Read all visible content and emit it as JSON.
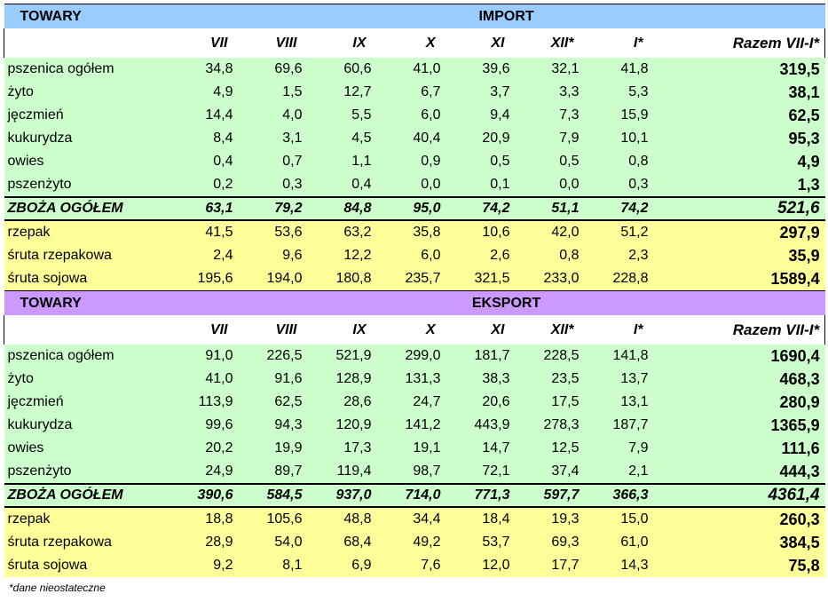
{
  "sections": [
    {
      "key": "import",
      "label": "TOWARY",
      "title": "IMPORT",
      "months": [
        "VII",
        "VIII",
        "IX",
        "X",
        "XI",
        "XII*",
        "I*",
        "Razem VII-I*"
      ],
      "rows": [
        {
          "name": "pszenica ogółem",
          "v": [
            "34,8",
            "69,6",
            "60,6",
            "41,0",
            "39,6",
            "32,1",
            "41,8"
          ],
          "total": "319,5"
        },
        {
          "name": "żyto",
          "v": [
            "4,9",
            "1,5",
            "12,7",
            "6,7",
            "3,7",
            "3,3",
            "5,3"
          ],
          "total": "38,1"
        },
        {
          "name": "jęczmień",
          "v": [
            "14,4",
            "4,0",
            "5,5",
            "6,0",
            "9,4",
            "7,3",
            "15,9"
          ],
          "total": "62,5"
        },
        {
          "name": "kukurydza",
          "v": [
            "8,4",
            "3,1",
            "4,5",
            "40,4",
            "20,9",
            "7,9",
            "10,1"
          ],
          "total": "95,3"
        },
        {
          "name": "owies",
          "v": [
            "0,4",
            "0,7",
            "1,1",
            "0,9",
            "0,5",
            "0,5",
            "0,8"
          ],
          "total": "4,9"
        },
        {
          "name": "pszenżyto",
          "v": [
            "0,2",
            "0,3",
            "0,4",
            "0,0",
            "0,1",
            "0,0",
            "0,3"
          ],
          "total": "1,3"
        }
      ],
      "sum": {
        "name": "ZBOŻA OGÓŁEM",
        "v": [
          "63,1",
          "79,2",
          "84,8",
          "95,0",
          "74,2",
          "51,1",
          "74,2"
        ],
        "total": "521,6"
      },
      "oil": [
        {
          "name": "rzepak",
          "v": [
            "41,5",
            "53,6",
            "63,2",
            "35,8",
            "10,6",
            "42,0",
            "51,2"
          ],
          "total": "297,9"
        },
        {
          "name": "śruta rzepakowa",
          "v": [
            "2,4",
            "9,6",
            "12,2",
            "6,0",
            "2,6",
            "0,8",
            "2,3"
          ],
          "total": "35,9"
        },
        {
          "name": "śruta sojowa",
          "v": [
            "195,6",
            "194,0",
            "180,8",
            "235,7",
            "321,5",
            "233,0",
            "228,8"
          ],
          "total": "1589,4"
        }
      ]
    },
    {
      "key": "eksport",
      "label": "TOWARY",
      "title": "EKSPORT",
      "months": [
        "VII",
        "VIII",
        "IX",
        "X",
        "XI",
        "XII*",
        "I*",
        "Razem VII-I*"
      ],
      "rows": [
        {
          "name": "pszenica ogółem",
          "v": [
            "91,0",
            "226,5",
            "521,9",
            "299,0",
            "181,7",
            "228,5",
            "141,8"
          ],
          "total": "1690,4"
        },
        {
          "name": "żyto",
          "v": [
            "41,0",
            "91,6",
            "128,9",
            "131,3",
            "38,3",
            "23,5",
            "13,7"
          ],
          "total": "468,3"
        },
        {
          "name": "jęczmień",
          "v": [
            "113,9",
            "62,5",
            "28,6",
            "24,7",
            "20,6",
            "17,5",
            "13,1"
          ],
          "total": "280,9"
        },
        {
          "name": "kukurydza",
          "v": [
            "99,6",
            "94,3",
            "120,9",
            "141,2",
            "443,9",
            "278,3",
            "187,7"
          ],
          "total": "1365,9"
        },
        {
          "name": "owies",
          "v": [
            "20,2",
            "19,9",
            "17,3",
            "19,1",
            "14,7",
            "12,5",
            "7,9"
          ],
          "total": "111,6"
        },
        {
          "name": "pszenżyto",
          "v": [
            "24,9",
            "89,7",
            "119,4",
            "98,7",
            "72,1",
            "37,4",
            "2,1"
          ],
          "total": "444,3"
        }
      ],
      "sum": {
        "name": "ZBOŻA OGÓŁEM",
        "v": [
          "390,6",
          "584,5",
          "937,0",
          "714,0",
          "771,3",
          "597,7",
          "366,3"
        ],
        "total": "4361,4"
      },
      "oil": [
        {
          "name": "rzepak",
          "v": [
            "18,8",
            "105,6",
            "48,8",
            "34,4",
            "18,4",
            "19,3",
            "15,0"
          ],
          "total": "260,3"
        },
        {
          "name": "śruta rzepakowa",
          "v": [
            "28,9",
            "54,0",
            "68,4",
            "49,2",
            "53,7",
            "69,3",
            "61,0"
          ],
          "total": "384,5"
        },
        {
          "name": "śruta sojowa",
          "v": [
            "9,2",
            "8,1",
            "6,9",
            "7,6",
            "12,0",
            "17,7",
            "14,3"
          ],
          "total": "75,8"
        }
      ]
    }
  ],
  "colors": {
    "import_header": "#99ccff",
    "eksport_header": "#cc99ff",
    "grain_rows": "#ccffcc",
    "oil_rows": "#ffff99"
  },
  "footnote": "*dane nieostateczne"
}
